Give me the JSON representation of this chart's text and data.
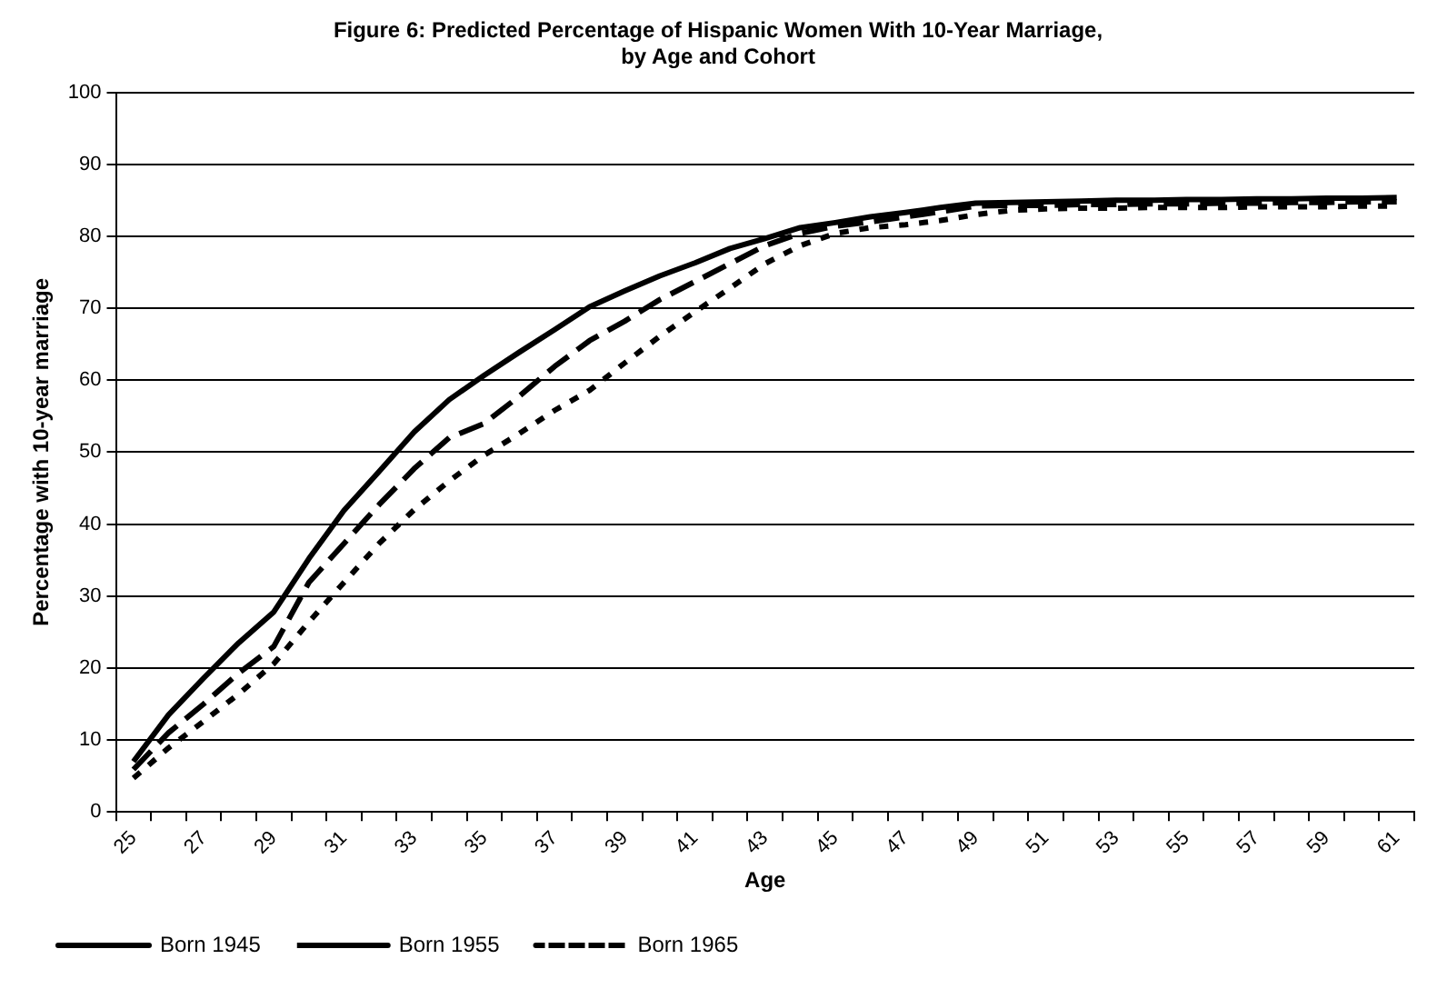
{
  "chart_data": {
    "type": "line",
    "title": "Figure 6: Predicted Percentage of Hispanic Women With 10-Year Marriage,\nby Age and Cohort",
    "xlabel": "Age",
    "ylabel": "Percentage with 10-year marriage",
    "categories": [
      "25",
      null,
      "27",
      null,
      "29",
      null,
      "31",
      null,
      "33",
      null,
      "35",
      null,
      "37",
      null,
      "39",
      null,
      "41",
      null,
      "43",
      null,
      "45",
      null,
      "47",
      null,
      "49",
      null,
      "51",
      null,
      "53",
      null,
      "55",
      null,
      "57",
      null,
      "59",
      null,
      "61"
    ],
    "series": [
      {
        "name": "Born 1945",
        "color": "#000000",
        "line_style": "solid",
        "values": [
          7,
          13.5,
          18.6,
          23.5,
          27.8,
          35.2,
          41.9,
          47.3,
          52.8,
          57.3,
          60.7,
          63.9,
          67,
          70.2,
          72.4,
          74.5,
          76.3,
          78.3,
          79.7,
          81.2,
          81.9,
          82.7,
          83.3,
          84,
          84.6,
          84.7,
          84.8,
          84.9,
          85,
          85,
          85.1,
          85.1,
          85.2,
          85.2,
          85.3,
          85.3,
          85.4
        ]
      },
      {
        "name": "Born 1955",
        "color": "#000000",
        "line_style": "dashed",
        "values": [
          5.9,
          11,
          15,
          19.3,
          23,
          31.9,
          37.3,
          42.7,
          47.7,
          52,
          54,
          57.8,
          61.9,
          65.5,
          68.2,
          71.2,
          73.7,
          76.2,
          78.7,
          80.4,
          81.4,
          82,
          82.7,
          83.4,
          84.2,
          84.3,
          84.3,
          84.4,
          84.4,
          84.5,
          84.5,
          84.6,
          84.6,
          84.7,
          84.7,
          84.8,
          84.8
        ]
      },
      {
        "name": "Born 1965",
        "color": "#000000",
        "line_style": "dotted",
        "values": [
          4.7,
          8.9,
          12.6,
          16.4,
          20.6,
          26.4,
          31.9,
          37.3,
          42,
          46,
          49.6,
          52.6,
          55.8,
          58.6,
          62.4,
          66.1,
          69.5,
          72.8,
          76.2,
          78.7,
          80.4,
          81.2,
          81.6,
          82.2,
          83,
          83.6,
          83.8,
          83.9,
          83.9,
          84,
          84,
          84,
          84.1,
          84.1,
          84.1,
          84.2,
          84.2
        ]
      }
    ],
    "ylim": [
      0,
      100
    ],
    "yticks": [
      0,
      10,
      20,
      30,
      40,
      50,
      60,
      70,
      80,
      90,
      100
    ],
    "grid": "y",
    "legend": "bottom"
  }
}
